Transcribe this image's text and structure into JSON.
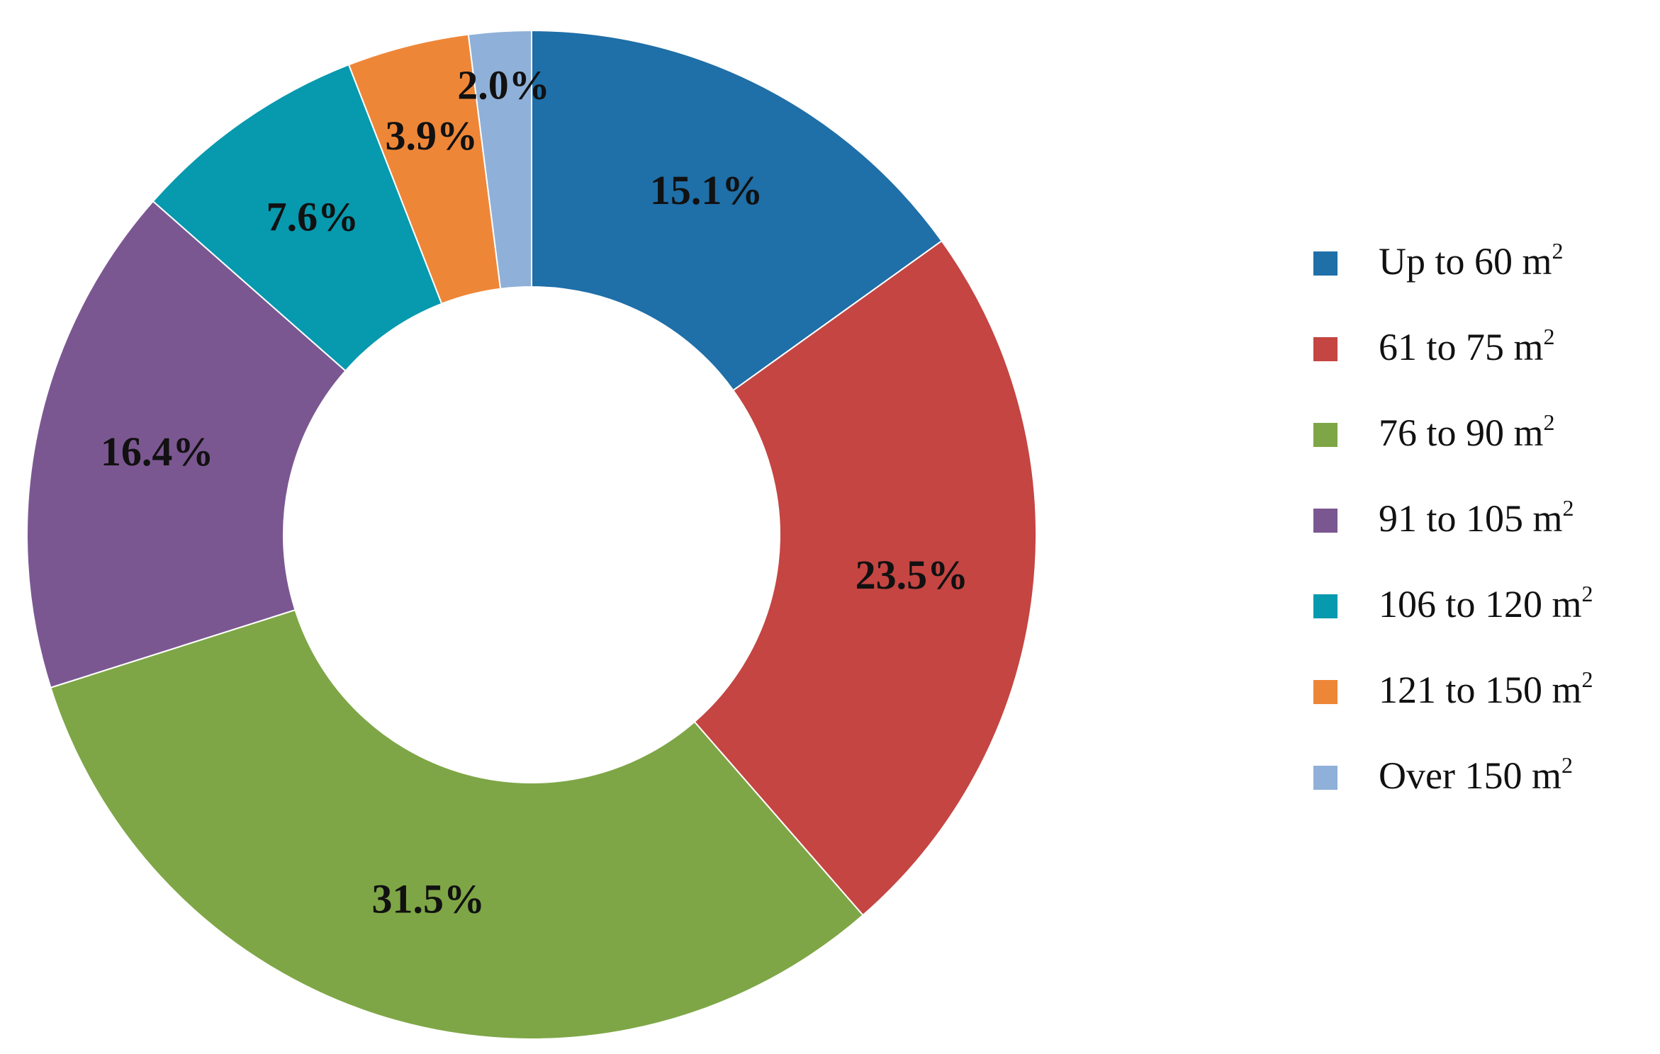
{
  "chart_data": {
    "type": "pie",
    "donut": true,
    "slices": [
      {
        "label": "Up to 60 m",
        "unit_sup": "2",
        "value": 15.1,
        "display": "15.1%",
        "color": "#1F6FA8"
      },
      {
        "label": "61 to 75 m",
        "unit_sup": "2",
        "value": 23.5,
        "display": "23.5%",
        "color": "#C44542"
      },
      {
        "label": "76 to 90 m",
        "unit_sup": "2",
        "value": 31.5,
        "display": "31.5%",
        "color": "#7EA646"
      },
      {
        "label": "91 to 105 m",
        "unit_sup": "2",
        "value": 16.4,
        "display": "16.4%",
        "color": "#7B5791"
      },
      {
        "label": "106 to 120 m",
        "unit_sup": "2",
        "value": 7.6,
        "display": "7.6%",
        "color": "#0799AE"
      },
      {
        "label": "121 to 150 m",
        "unit_sup": "2",
        "value": 3.9,
        "display": "3.9%",
        "color": "#EE8638"
      },
      {
        "label": "Over 150 m",
        "unit_sup": "2",
        "value": 2.0,
        "display": "2.0%",
        "color": "#8FB0D8"
      }
    ],
    "legend_position": "right"
  }
}
